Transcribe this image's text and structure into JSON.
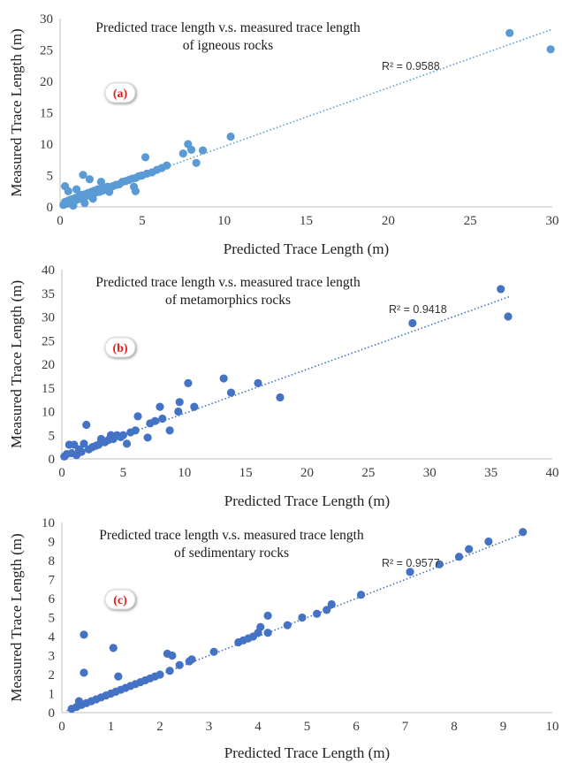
{
  "chart_data": [
    {
      "type": "scatter",
      "panel_label": "(a)",
      "title_lines": [
        "Predicted trace length v.s. measured trace length",
        "of igneous rocks"
      ],
      "xlabel": "Predicted Trace Length (m)",
      "ylabel": "Measured Trace Length (m)",
      "xlim": [
        0,
        30
      ],
      "ylim": [
        0,
        30
      ],
      "xticks": [
        "0",
        "5",
        "10",
        "15",
        "20",
        "25",
        "30"
      ],
      "yticks": [
        "0",
        "5",
        "10",
        "15",
        "20",
        "25",
        "30"
      ],
      "grid": false,
      "point_color": "#5b9bd5",
      "r2_label": "R² = 0.9588",
      "trendline": {
        "x": [
          0,
          30
        ],
        "y": [
          0.3,
          28.3
        ]
      },
      "points": [
        [
          0.2,
          0.3
        ],
        [
          0.3,
          0.8
        ],
        [
          0.4,
          0.5
        ],
        [
          0.5,
          1.0
        ],
        [
          0.6,
          0.7
        ],
        [
          0.7,
          1.2
        ],
        [
          0.8,
          0.9
        ],
        [
          0.9,
          1.4
        ],
        [
          1.0,
          1.1
        ],
        [
          1.1,
          1.6
        ],
        [
          1.2,
          1.3
        ],
        [
          1.3,
          1.9
        ],
        [
          1.4,
          1.5
        ],
        [
          1.5,
          2.0
        ],
        [
          1.6,
          1.7
        ],
        [
          1.7,
          2.2
        ],
        [
          1.8,
          1.9
        ],
        [
          1.9,
          2.4
        ],
        [
          2.0,
          2.1
        ],
        [
          2.1,
          2.6
        ],
        [
          2.2,
          2.3
        ],
        [
          2.3,
          2.8
        ],
        [
          2.4,
          2.4
        ],
        [
          2.5,
          2.9
        ],
        [
          2.6,
          2.6
        ],
        [
          2.7,
          3.1
        ],
        [
          2.8,
          2.8
        ],
        [
          2.9,
          3.2
        ],
        [
          3.0,
          3.0
        ],
        [
          3.2,
          3.3
        ],
        [
          3.4,
          3.5
        ],
        [
          3.6,
          3.6
        ],
        [
          3.8,
          4.0
        ],
        [
          4.0,
          4.1
        ],
        [
          4.2,
          4.3
        ],
        [
          4.4,
          4.5
        ],
        [
          4.6,
          4.6
        ],
        [
          4.8,
          4.9
        ],
        [
          5.0,
          5.0
        ],
        [
          5.3,
          5.3
        ],
        [
          5.6,
          5.5
        ],
        [
          5.9,
          5.9
        ],
        [
          6.2,
          6.2
        ],
        [
          6.5,
          6.6
        ],
        [
          0.3,
          3.3
        ],
        [
          0.5,
          2.5
        ],
        [
          1.0,
          2.8
        ],
        [
          1.4,
          5.1
        ],
        [
          1.8,
          4.4
        ],
        [
          2.5,
          4.0
        ],
        [
          0.8,
          0.2
        ],
        [
          1.5,
          0.6
        ],
        [
          2.0,
          1.3
        ],
        [
          3.0,
          2.4
        ],
        [
          4.5,
          3.2
        ],
        [
          4.6,
          2.5
        ],
        [
          5.2,
          7.9
        ],
        [
          7.5,
          8.5
        ],
        [
          7.8,
          10.0
        ],
        [
          8.0,
          9.1
        ],
        [
          8.3,
          7.0
        ],
        [
          8.7,
          9.0
        ],
        [
          10.4,
          11.2
        ],
        [
          27.4,
          27.7
        ],
        [
          29.9,
          25.1
        ]
      ]
    },
    {
      "type": "scatter",
      "panel_label": "(b)",
      "title_lines": [
        "Predicted trace length v.s. measured trace length",
        "of metamorphics rocks"
      ],
      "xlabel": "Predicted Trace Length (m)",
      "ylabel": "Measured Trace Length (m)",
      "xlim": [
        0,
        40
      ],
      "ylim": [
        0,
        40
      ],
      "xticks": [
        "0",
        "5",
        "10",
        "15",
        "20",
        "25",
        "30",
        "35",
        "40"
      ],
      "yticks": [
        "0",
        "5",
        "10",
        "15",
        "20",
        "25",
        "30",
        "35",
        "40"
      ],
      "grid": false,
      "point_color": "#4472c4",
      "r2_label": "R² = 0.9418",
      "trendline": {
        "x": [
          0,
          36.5
        ],
        "y": [
          0.3,
          34.3
        ]
      },
      "points": [
        [
          0.2,
          0.5
        ],
        [
          0.4,
          1.0
        ],
        [
          0.6,
          3.0
        ],
        [
          0.8,
          1.2
        ],
        [
          1.0,
          3.0
        ],
        [
          1.2,
          0.8
        ],
        [
          1.4,
          2.0
        ],
        [
          1.6,
          1.5
        ],
        [
          1.8,
          3.2
        ],
        [
          2.0,
          7.2
        ],
        [
          2.2,
          2.0
        ],
        [
          2.5,
          2.5
        ],
        [
          2.8,
          2.8
        ],
        [
          3.0,
          3.0
        ],
        [
          3.2,
          4.2
        ],
        [
          3.5,
          3.5
        ],
        [
          3.8,
          4.0
        ],
        [
          4.0,
          5.0
        ],
        [
          4.2,
          4.2
        ],
        [
          4.5,
          5.0
        ],
        [
          4.8,
          4.6
        ],
        [
          5.0,
          5.0
        ],
        [
          5.3,
          3.2
        ],
        [
          5.6,
          5.6
        ],
        [
          6.0,
          6.0
        ],
        [
          6.2,
          9.0
        ],
        [
          7.0,
          4.5
        ],
        [
          7.2,
          7.5
        ],
        [
          7.6,
          8.0
        ],
        [
          8.0,
          11.0
        ],
        [
          8.2,
          8.5
        ],
        [
          8.8,
          6.0
        ],
        [
          9.5,
          10.0
        ],
        [
          9.6,
          12.0
        ],
        [
          10.3,
          16.0
        ],
        [
          10.8,
          11.0
        ],
        [
          13.2,
          17.0
        ],
        [
          13.8,
          14.0
        ],
        [
          16.0,
          16.0
        ],
        [
          17.8,
          13.0
        ],
        [
          28.6,
          28.7
        ],
        [
          35.8,
          35.9
        ],
        [
          36.4,
          30.1
        ]
      ]
    },
    {
      "type": "scatter",
      "panel_label": "(c)",
      "title_lines": [
        "Predicted trace length v.s. measured trace length",
        "of sedimentary rocks"
      ],
      "xlabel": "Predicted Trace Length (m)",
      "ylabel": "Measured Trace Length (m)",
      "xlim": [
        0,
        10
      ],
      "ylim": [
        0,
        10
      ],
      "xticks": [
        "0",
        "1",
        "2",
        "3",
        "4",
        "5",
        "6",
        "7",
        "8",
        "9",
        "10"
      ],
      "yticks": [
        "0",
        "1",
        "2",
        "3",
        "4",
        "5",
        "6",
        "7",
        "8",
        "9",
        "10"
      ],
      "grid": false,
      "point_color": "#4472c4",
      "r2_label": "R² = 0.9577",
      "trendline": {
        "x": [
          0.1,
          9.5
        ],
        "y": [
          0.1,
          9.5
        ]
      },
      "points": [
        [
          0.2,
          0.2
        ],
        [
          0.3,
          0.3
        ],
        [
          0.35,
          0.6
        ],
        [
          0.4,
          0.4
        ],
        [
          0.45,
          4.1
        ],
        [
          0.45,
          2.1
        ],
        [
          0.5,
          0.5
        ],
        [
          0.6,
          0.6
        ],
        [
          0.7,
          0.7
        ],
        [
          0.8,
          0.8
        ],
        [
          0.9,
          0.9
        ],
        [
          1.0,
          1.0
        ],
        [
          1.05,
          3.4
        ],
        [
          1.1,
          1.1
        ],
        [
          1.15,
          1.9
        ],
        [
          1.2,
          1.2
        ],
        [
          1.3,
          1.3
        ],
        [
          1.4,
          1.4
        ],
        [
          1.5,
          1.5
        ],
        [
          1.6,
          1.6
        ],
        [
          1.7,
          1.7
        ],
        [
          1.8,
          1.8
        ],
        [
          1.9,
          1.9
        ],
        [
          2.0,
          2.0
        ],
        [
          2.2,
          2.2
        ],
        [
          2.25,
          3.0
        ],
        [
          2.15,
          3.1
        ],
        [
          2.4,
          2.5
        ],
        [
          2.6,
          2.7
        ],
        [
          2.65,
          2.8
        ],
        [
          3.1,
          3.2
        ],
        [
          3.6,
          3.7
        ],
        [
          3.7,
          3.8
        ],
        [
          3.8,
          3.9
        ],
        [
          3.9,
          4.0
        ],
        [
          4.0,
          4.2
        ],
        [
          4.05,
          4.5
        ],
        [
          4.2,
          5.1
        ],
        [
          4.2,
          4.2
        ],
        [
          4.6,
          4.6
        ],
        [
          4.9,
          5.0
        ],
        [
          5.2,
          5.2
        ],
        [
          5.4,
          5.4
        ],
        [
          5.5,
          5.7
        ],
        [
          6.1,
          6.2
        ],
        [
          7.1,
          7.4
        ],
        [
          7.7,
          7.8
        ],
        [
          8.1,
          8.2
        ],
        [
          8.3,
          8.6
        ],
        [
          8.7,
          9.0
        ],
        [
          9.4,
          9.5
        ]
      ]
    }
  ]
}
